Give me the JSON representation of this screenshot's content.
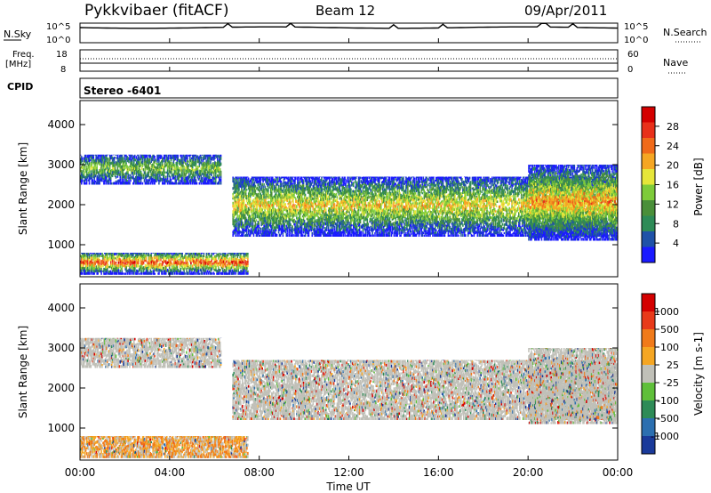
{
  "header": {
    "title": "Pykkvibaer (fitACF)",
    "beam": "Beam 12",
    "date": "09/Apr/2011"
  },
  "summary_panels": {
    "nsky_label": "N.Sky",
    "nsky_ticks": [
      "10^5",
      "10^0"
    ],
    "nsearch_label": "N.Search",
    "nsearch_ticks": [
      "10^5",
      "10^0"
    ],
    "freq_label_1": "Freq.",
    "freq_label_2": "[MHz]",
    "freq_ticks": [
      "18",
      "8"
    ],
    "nave_label": "Nave",
    "nave_ticks": [
      "60",
      "0"
    ],
    "cpid_label": "CPID",
    "cpid_value": "Stereo -6401"
  },
  "x_axis": {
    "label": "Time UT",
    "ticks": [
      "00:00",
      "04:00",
      "08:00",
      "12:00",
      "16:00",
      "20:00",
      "00:00"
    ],
    "range_hours": [
      0,
      24
    ]
  },
  "chart_data": [
    {
      "type": "heatmap",
      "variable": "Power",
      "ylabel": "Slant Range [km]",
      "yticks": [
        "1000",
        "2000",
        "3000",
        "4000"
      ],
      "ylim": [
        200,
        4600
      ],
      "colorbar_label": "Power [dB]",
      "colorbar_ticks": [
        "28",
        "24",
        "20",
        "16",
        "12",
        "8",
        "4"
      ],
      "colors": [
        "#1a1aff",
        "#1f52a8",
        "#2e8b57",
        "#4a8f3a",
        "#7ecb3a",
        "#e6e63a",
        "#f5a623",
        "#f06a1a",
        "#e8301a",
        "#d40000"
      ],
      "echo_bands": [
        {
          "t0": 0.0,
          "t1": 6.3,
          "r0": 2500,
          "r1": 3250,
          "level": 0.45
        },
        {
          "t0": 0.0,
          "t1": 7.5,
          "r0": 250,
          "r1": 800,
          "level": 0.85
        },
        {
          "t0": 6.8,
          "t1": 23.9,
          "r0": 1200,
          "r1": 2700,
          "level": 0.6
        },
        {
          "t0": 20.0,
          "t1": 24.0,
          "r0": 1100,
          "r1": 3000,
          "level": 0.7
        }
      ]
    },
    {
      "type": "heatmap",
      "variable": "Velocity",
      "ylabel": "Slant Range [km]",
      "yticks": [
        "1000",
        "2000",
        "3000",
        "4000"
      ],
      "ylim": [
        200,
        4600
      ],
      "colorbar_label": "Velocity [m s-1]",
      "colorbar_ticks": [
        "1000",
        "500",
        "100",
        "25",
        "-25",
        "-100",
        "-500",
        "-1000"
      ],
      "colors": [
        "#1a3a9a",
        "#2c6fb0",
        "#2e8b57",
        "#5fbf3a",
        "#c0c0b8",
        "#f5a623",
        "#f07a1a",
        "#e83a1a",
        "#d40000"
      ],
      "echo_bands": [
        {
          "t0": 0.0,
          "t1": 6.3,
          "r0": 2500,
          "r1": 3250,
          "level": 0.5
        },
        {
          "t0": 0.0,
          "t1": 7.5,
          "r0": 250,
          "r1": 800,
          "level": 0.7
        },
        {
          "t0": 6.8,
          "t1": 23.9,
          "r0": 1200,
          "r1": 2700,
          "level": 0.5
        },
        {
          "t0": 20.0,
          "t1": 24.0,
          "r0": 1100,
          "r1": 3000,
          "level": 0.55
        }
      ]
    }
  ]
}
